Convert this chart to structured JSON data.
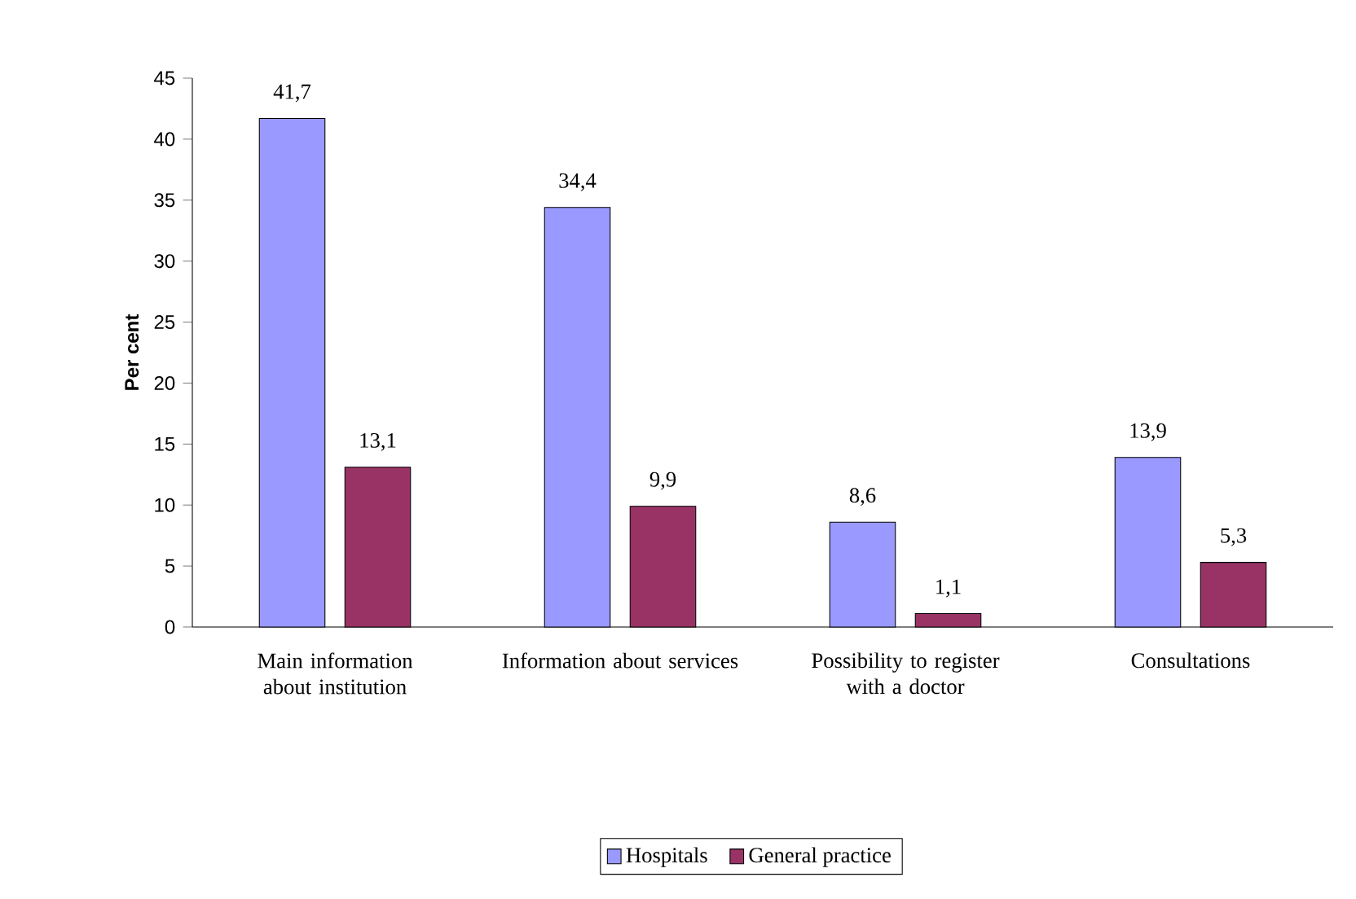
{
  "chart_data": {
    "type": "bar",
    "ylabel": "Per cent",
    "categories": [
      "Main information about institution",
      "Information about services",
      "Possibility to register with a doctor",
      "Consultations"
    ],
    "series": [
      {
        "name": "Hospitals",
        "color": "#9999ff",
        "values": [
          41.7,
          34.4,
          8.6,
          13.9
        ],
        "value_labels": [
          "41,7",
          "34,4",
          "8,6",
          "13,9"
        ]
      },
      {
        "name": "General practice",
        "color": "#993366",
        "values": [
          13.1,
          9.9,
          1.1,
          5.3
        ],
        "value_labels": [
          "13,1",
          "9,9",
          "1,1",
          "5,3"
        ]
      }
    ],
    "ylim": [
      0,
      45
    ],
    "yticks": [
      0,
      5,
      10,
      15,
      20,
      25,
      30,
      35,
      40,
      45
    ],
    "grid": false,
    "legend": "bottom"
  }
}
